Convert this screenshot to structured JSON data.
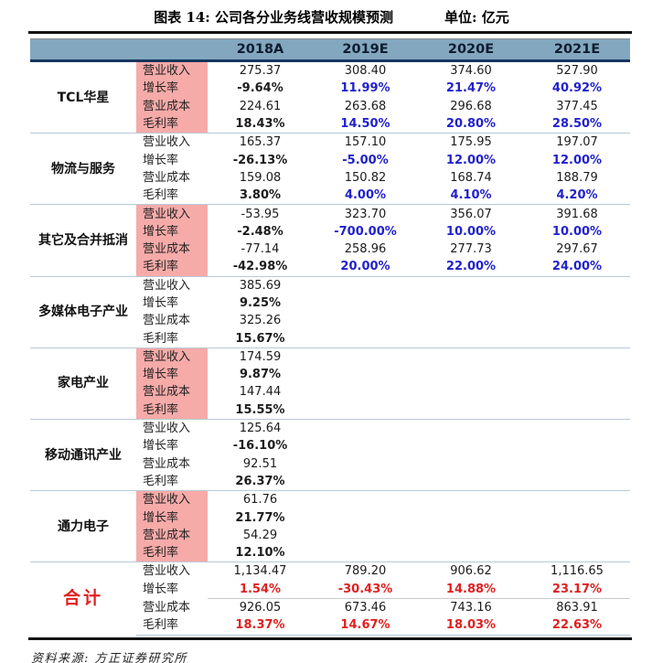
{
  "title": "图表 14: 公司各分业务线营收规模预测",
  "unit_label": "单位: 亿元",
  "source": "资料来源: 方正证券研究所",
  "colors": {
    "header_bg": "#82A7BF",
    "header_border": "#17365D",
    "pink_label_bg": "#F6ABA9",
    "forecast_blue": "#2121CE",
    "total_red": "#E02020"
  },
  "table": {
    "col_headers": [
      "2018A",
      "2019E",
      "2020E",
      "2021E"
    ],
    "row_labels": [
      "营业收入",
      "增长率",
      "营业成本",
      "毛利率"
    ],
    "groups": [
      {
        "name": "TCL华星",
        "pink": true,
        "total": false,
        "rows": [
          [
            "275.37",
            "308.40",
            "374.60",
            "527.90"
          ],
          [
            "-9.64%",
            "11.99%",
            "21.47%",
            "40.92%"
          ],
          [
            "224.61",
            "263.68",
            "296.68",
            "377.45"
          ],
          [
            "18.43%",
            "14.50%",
            "20.80%",
            "28.50%"
          ]
        ]
      },
      {
        "name": "物流与服务",
        "pink": false,
        "total": false,
        "rows": [
          [
            "165.37",
            "157.10",
            "175.95",
            "197.07"
          ],
          [
            "-26.13%",
            "-5.00%",
            "12.00%",
            "12.00%"
          ],
          [
            "159.08",
            "150.82",
            "168.74",
            "188.79"
          ],
          [
            "3.80%",
            "4.00%",
            "4.10%",
            "4.20%"
          ]
        ]
      },
      {
        "name": "其它及合并抵消",
        "pink": true,
        "total": false,
        "rows": [
          [
            "-53.95",
            "323.70",
            "356.07",
            "391.68"
          ],
          [
            "-2.48%",
            "-700.00%",
            "10.00%",
            "10.00%"
          ],
          [
            "-77.14",
            "258.96",
            "277.73",
            "297.67"
          ],
          [
            "-42.98%",
            "20.00%",
            "22.00%",
            "24.00%"
          ]
        ]
      },
      {
        "name": "多媒体电子产业",
        "pink": false,
        "total": false,
        "rows": [
          [
            "385.69",
            "",
            "",
            ""
          ],
          [
            "9.25%",
            "",
            "",
            ""
          ],
          [
            "325.26",
            "",
            "",
            ""
          ],
          [
            "15.67%",
            "",
            "",
            ""
          ]
        ]
      },
      {
        "name": "家电产业",
        "pink": true,
        "total": false,
        "rows": [
          [
            "174.59",
            "",
            "",
            ""
          ],
          [
            "9.87%",
            "",
            "",
            ""
          ],
          [
            "147.44",
            "",
            "",
            ""
          ],
          [
            "15.55%",
            "",
            "",
            ""
          ]
        ]
      },
      {
        "name": "移动通讯产业",
        "pink": false,
        "total": false,
        "rows": [
          [
            "125.64",
            "",
            "",
            ""
          ],
          [
            "-16.10%",
            "",
            "",
            ""
          ],
          [
            "92.51",
            "",
            "",
            ""
          ],
          [
            "26.37%",
            "",
            "",
            ""
          ]
        ]
      },
      {
        "name": "通力电子",
        "pink": true,
        "total": false,
        "rows": [
          [
            "61.76",
            "",
            "",
            ""
          ],
          [
            "21.77%",
            "",
            "",
            ""
          ],
          [
            "54.29",
            "",
            "",
            ""
          ],
          [
            "12.10%",
            "",
            "",
            ""
          ]
        ]
      },
      {
        "name": "合计",
        "pink": false,
        "total": true,
        "rows": [
          [
            "1,134.47",
            "789.20",
            "906.62",
            "1,116.65"
          ],
          [
            "1.54%",
            "-30.43%",
            "14.88%",
            "23.17%"
          ],
          [
            "926.05",
            "673.46",
            "743.16",
            "863.91"
          ],
          [
            "18.37%",
            "14.67%",
            "18.03%",
            "22.63%"
          ]
        ]
      }
    ]
  }
}
